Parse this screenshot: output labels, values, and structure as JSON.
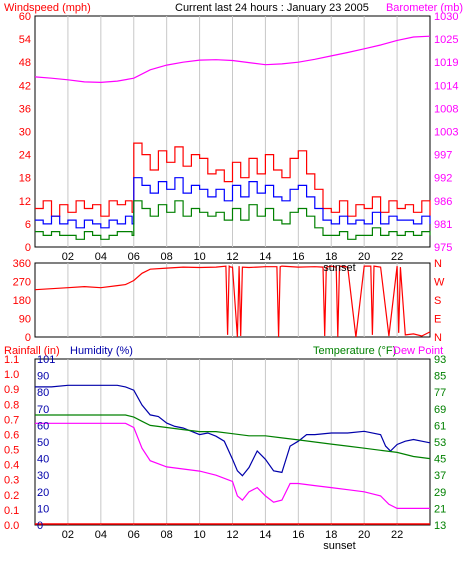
{
  "header": {
    "windspeed_label": "Windspeed (mph)",
    "title": "Current last 24 hours : January 23 2005",
    "barometer_label": "Barometer (mb)"
  },
  "bottom_header": {
    "rainfall_label": "Rainfall (in)",
    "humidity_label": "Humidity (%)",
    "temperature_label": "Temperature (°F)",
    "dewpoint_label": "Dew Point"
  },
  "sunset_label": "sunset",
  "colors": {
    "wind_gust": "#ff0000",
    "wind_avg": "#0000ff",
    "wind_min": "#008000",
    "barometer": "#ff00ff",
    "direction": "#ff0000",
    "humidity": "#0000aa",
    "temperature": "#008000",
    "dewpoint": "#ff00ff",
    "grid": "#c8c8c8",
    "axis_red": "#ff0000",
    "axis_magenta": "#ff00ff",
    "axis_blue": "#0000aa",
    "axis_green": "#008000"
  },
  "chart_data": [
    {
      "type": "line",
      "id": "wind-barometer",
      "x_ticks": [
        "02",
        "04",
        "06",
        "08",
        "10",
        "12",
        "14",
        "16",
        "18",
        "20",
        "22"
      ],
      "x_tick_hours": [
        2,
        4,
        6,
        8,
        10,
        12,
        14,
        16,
        18,
        20,
        22
      ],
      "xlim": [
        0,
        24
      ],
      "sunset_hour": 18.5,
      "ylabel_left": "Windspeed (mph)",
      "ylim_left": [
        0,
        60
      ],
      "yticks_left": [
        "0",
        "6",
        "12",
        "18",
        "24",
        "30",
        "36",
        "42",
        "48",
        "54",
        "60"
      ],
      "ylabel_right": "Barometer (mb)",
      "ylim_right": [
        975,
        1030
      ],
      "yticks_right": [
        "975",
        "981",
        "986",
        "992",
        "997",
        "1003",
        "1008",
        "1014",
        "1019",
        "1025",
        "1030"
      ],
      "series": [
        {
          "role": "barometer",
          "axis": "right",
          "x": [
            0,
            1,
            2,
            3,
            4,
            5,
            6,
            7,
            8,
            9,
            10,
            11,
            12,
            13,
            14,
            15,
            16,
            17,
            18,
            19,
            20,
            21,
            22,
            23,
            24
          ],
          "y": [
            1015.5,
            1015.2,
            1014.8,
            1014.3,
            1014.2,
            1014.5,
            1015.2,
            1017.2,
            1018.3,
            1019.0,
            1019.5,
            1019.6,
            1019.4,
            1018.9,
            1018.4,
            1018.6,
            1019.0,
            1019.7,
            1020.5,
            1021.3,
            1022.2,
            1023.1,
            1024.2,
            1025.0,
            1025.2
          ]
        },
        {
          "role": "gust",
          "axis": "left",
          "x": [
            0,
            0.5,
            1,
            1.5,
            2,
            2.5,
            3,
            3.5,
            4,
            4.5,
            5,
            5.5,
            5.9,
            6,
            6.5,
            7,
            7.5,
            8,
            8.5,
            9,
            9.5,
            10,
            10.5,
            11,
            11.5,
            12,
            12.5,
            13,
            13.5,
            14,
            14.5,
            15,
            15.5,
            16,
            16.5,
            17,
            17.5,
            18,
            18.5,
            19,
            19.5,
            20,
            20.5,
            21,
            21.5,
            22,
            22.5,
            23,
            23.5,
            24
          ],
          "y": [
            10,
            12,
            8,
            11,
            9,
            12,
            10,
            11,
            8,
            12,
            11,
            12,
            9,
            27,
            24,
            20,
            25,
            22,
            26,
            21,
            24,
            23,
            19,
            20,
            17,
            22,
            18,
            23,
            19,
            24,
            20,
            18,
            23,
            25,
            19,
            15,
            10,
            9,
            12,
            8,
            11,
            10,
            13,
            9,
            12,
            10,
            11,
            9,
            12,
            8
          ]
        },
        {
          "role": "average",
          "axis": "left",
          "x": [
            0,
            0.5,
            1,
            1.5,
            2,
            2.5,
            3,
            3.5,
            4,
            4.5,
            5,
            5.5,
            5.9,
            6,
            6.5,
            7,
            7.5,
            8,
            8.5,
            9,
            9.5,
            10,
            10.5,
            11,
            11.5,
            12,
            12.5,
            13,
            13.5,
            14,
            14.5,
            15,
            15.5,
            16,
            16.5,
            17,
            17.5,
            18,
            18.5,
            19,
            19.5,
            20,
            20.5,
            21,
            21.5,
            22,
            22.5,
            23,
            23.5,
            24
          ],
          "y": [
            7,
            6,
            8,
            6,
            7,
            5,
            7,
            6,
            5,
            7,
            6,
            8,
            6,
            18,
            16,
            14,
            17,
            15,
            18,
            14,
            16,
            15,
            13,
            15,
            12,
            16,
            13,
            17,
            14,
            16,
            13,
            12,
            15,
            16,
            13,
            10,
            7,
            6,
            8,
            6,
            7,
            6,
            9,
            6,
            8,
            7,
            7,
            6,
            8,
            6
          ]
        },
        {
          "role": "minimum",
          "axis": "left",
          "x": [
            0,
            0.5,
            1,
            1.5,
            2,
            2.5,
            3,
            3.5,
            4,
            4.5,
            5,
            5.5,
            5.9,
            6,
            6.5,
            7,
            7.5,
            8,
            8.5,
            9,
            9.5,
            10,
            10.5,
            11,
            11.5,
            12,
            12.5,
            13,
            13.5,
            14,
            14.5,
            15,
            15.5,
            16,
            16.5,
            17,
            17.5,
            18,
            18.5,
            19,
            19.5,
            20,
            20.5,
            21,
            21.5,
            22,
            22.5,
            23,
            23.5,
            24
          ],
          "y": [
            4,
            3,
            4,
            3,
            3,
            2,
            4,
            3,
            2,
            3,
            4,
            4,
            3,
            12,
            10,
            8,
            11,
            9,
            12,
            8,
            10,
            9,
            8,
            9,
            7,
            10,
            7,
            11,
            8,
            10,
            7,
            6,
            9,
            10,
            8,
            5,
            3,
            3,
            4,
            2,
            3,
            3,
            5,
            3,
            4,
            3,
            4,
            3,
            4,
            3
          ]
        }
      ]
    },
    {
      "type": "line",
      "id": "wind-direction",
      "xlim": [
        0,
        24
      ],
      "ylim": [
        0,
        360
      ],
      "yticks_left": [
        "0",
        "90",
        "180",
        "270",
        "360"
      ],
      "yticks_right": [
        "N",
        "E",
        "S",
        "W",
        "N"
      ],
      "series": [
        {
          "role": "direction",
          "x": [
            0,
            1,
            2,
            3,
            4,
            5,
            5.5,
            6,
            6.5,
            7,
            8,
            9,
            10,
            11,
            11.6,
            11.7,
            11.8,
            11.9,
            12,
            12.3,
            12.4,
            12.5,
            12.6,
            13,
            13.5,
            14,
            14.7,
            14.8,
            14.9,
            15,
            16,
            17,
            17.5,
            17.6,
            17.7,
            18,
            18.3,
            18.4,
            18.5,
            19,
            19.5,
            20,
            20.4,
            20.5,
            20.6,
            21,
            21.5,
            22,
            22.1,
            22.2,
            22.5,
            23,
            23.5,
            24
          ],
          "y": [
            230,
            235,
            240,
            245,
            240,
            250,
            255,
            275,
            310,
            330,
            335,
            340,
            338,
            340,
            345,
            10,
            345,
            340,
            340,
            0,
            345,
            5,
            340,
            338,
            340,
            342,
            342,
            0,
            342,
            345,
            340,
            342,
            340,
            5,
            340,
            345,
            340,
            0,
            345,
            340,
            0,
            345,
            345,
            10,
            345,
            340,
            5,
            345,
            20,
            340,
            10,
            15,
            5,
            25
          ]
        }
      ]
    },
    {
      "type": "line",
      "id": "humidity-temperature",
      "xlim": [
        0,
        24
      ],
      "ylabel_left_outer": "Rainfall (in)",
      "ylim_left_outer": [
        0,
        1.1
      ],
      "yticks_left_outer": [
        "0.0",
        "0.1",
        "0.2",
        "0.3",
        "0.4",
        "0.5",
        "0.6",
        "0.7",
        "0.8",
        "0.9",
        "1.0",
        "1.1"
      ],
      "ylabel_left_inner": "Humidity (%)",
      "ylim_left_inner": [
        0,
        101
      ],
      "yticks_left_inner": [
        "0",
        "10",
        "20",
        "30",
        "40",
        "50",
        "60",
        "70",
        "80",
        "90",
        "101"
      ],
      "ylabel_right": "Temperature (°F)",
      "ylim_right": [
        13,
        93
      ],
      "yticks_right": [
        "13",
        "21",
        "29",
        "37",
        "45",
        "53",
        "61",
        "69",
        "77",
        "85",
        "93"
      ],
      "series": [
        {
          "role": "humidity",
          "x": [
            0,
            1,
            2,
            3,
            4,
            5,
            5.5,
            6,
            6.5,
            7,
            7.5,
            8,
            8.5,
            9,
            9.5,
            10,
            10.5,
            11,
            11.5,
            12,
            12.3,
            12.6,
            13,
            13.5,
            14,
            14.5,
            15,
            15.5,
            16,
            16.5,
            17,
            18,
            19,
            20,
            21,
            21.3,
            21.6,
            22,
            22.5,
            23,
            23.5,
            24
          ],
          "y": [
            84,
            84,
            85,
            85,
            85,
            85,
            84,
            82,
            73,
            67,
            66,
            62,
            60,
            59,
            57,
            55,
            56,
            54,
            51,
            40,
            33,
            30,
            35,
            45,
            40,
            33,
            32,
            48,
            51,
            55,
            55,
            56,
            56,
            57,
            55,
            48,
            45,
            49,
            51,
            52,
            51,
            50
          ]
        },
        {
          "role": "temperature",
          "x": [
            0,
            1,
            2,
            3,
            4,
            5,
            5.5,
            6,
            6.5,
            7,
            8,
            9,
            10,
            11,
            12,
            13,
            14,
            15,
            16,
            17,
            18,
            19,
            20,
            21,
            22,
            23,
            24
          ],
          "y": [
            66,
            66,
            66,
            66,
            66,
            66,
            66,
            65,
            63,
            61,
            60,
            59,
            58,
            58,
            57,
            56,
            56,
            55,
            54,
            53,
            52,
            51,
            50,
            49,
            48,
            46,
            45
          ]
        },
        {
          "role": "dewpoint",
          "x": [
            0,
            1,
            2,
            3,
            4,
            5,
            5.5,
            6,
            6.5,
            7,
            8,
            9,
            10,
            11,
            12,
            12.3,
            12.6,
            13,
            13.5,
            14,
            14.5,
            15,
            15.5,
            16,
            17,
            18,
            19,
            20,
            21,
            21.5,
            22,
            23,
            24
          ],
          "y": [
            62,
            62,
            62,
            62,
            62,
            62,
            62,
            60,
            50,
            44,
            41,
            40,
            39,
            37,
            34,
            27,
            25,
            29,
            31,
            27,
            24,
            25,
            33,
            33,
            32,
            31,
            30,
            29,
            27,
            23,
            21,
            21,
            21
          ]
        }
      ]
    }
  ]
}
